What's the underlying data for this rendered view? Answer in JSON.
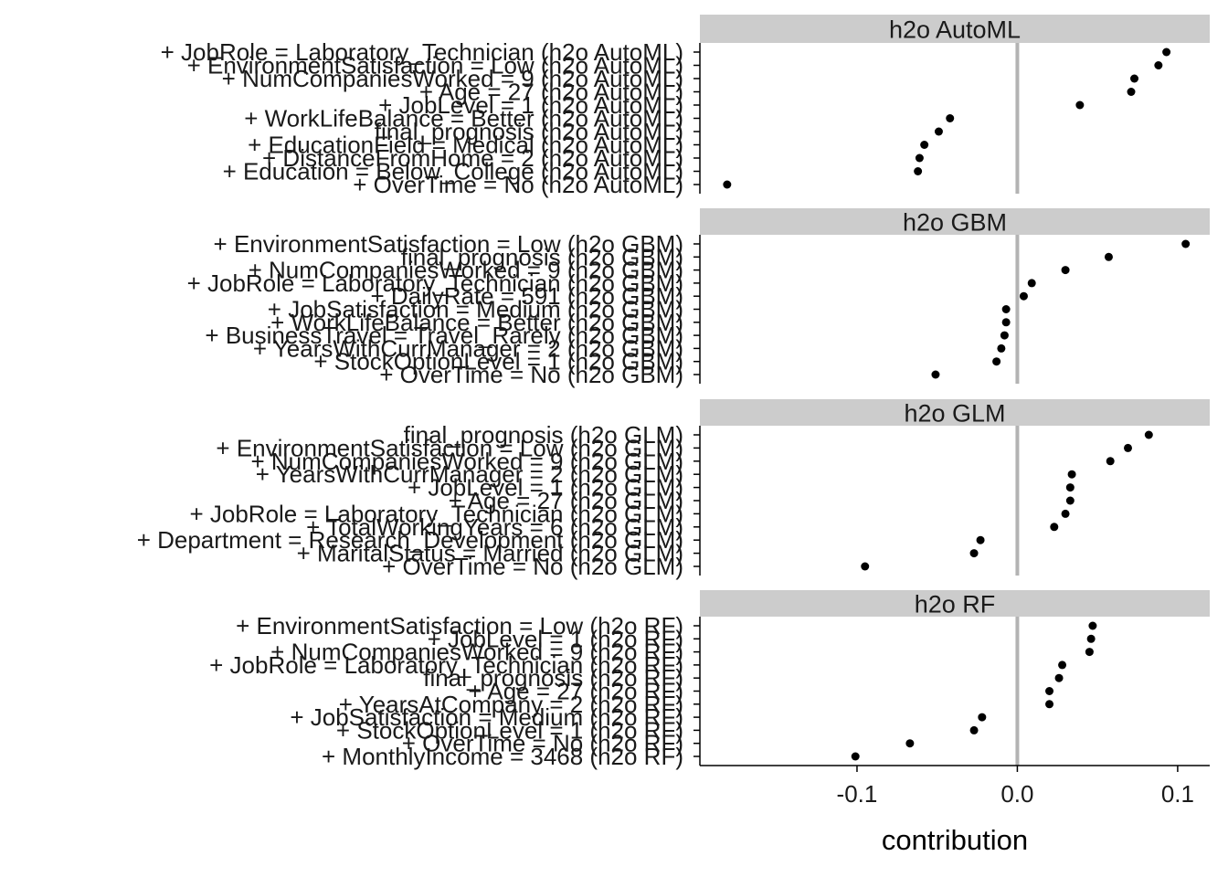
{
  "chart_data": {
    "type": "scatter",
    "xlabel": "contribution",
    "xlim": [
      -0.198,
      0.12
    ],
    "xticks": [
      {
        "value": -0.1,
        "label": "-0.1"
      },
      {
        "value": 0.0,
        "label": "0.0"
      },
      {
        "value": 0.1,
        "label": "0.1"
      }
    ],
    "zero_line": 0,
    "point_color": "#000000",
    "refline_color": "#b3b3b3",
    "strip_color": "#cccccc",
    "panels": [
      {
        "title": "h2o AutoML",
        "points": [
          {
            "label": "+ JobRole = Laboratory_Technician (h2o AutoML)",
            "value": 0.093
          },
          {
            "label": "+ EnvironmentSatisfaction = Low (h2o AutoML)",
            "value": 0.088
          },
          {
            "label": "+ NumCompaniesWorked = 9 (h2o AutoML)",
            "value": 0.073
          },
          {
            "label": "+ Age = 27 (h2o AutoML)",
            "value": 0.071
          },
          {
            "label": "+ JobLevel = 1 (h2o AutoML)",
            "value": 0.039
          },
          {
            "label": "+ WorkLifeBalance = Better (h2o AutoML)",
            "value": -0.042
          },
          {
            "label": "final_prognosis (h2o AutoML)",
            "value": -0.049
          },
          {
            "label": "+ EducationField = Medical (h2o AutoML)",
            "value": -0.058
          },
          {
            "label": "+ DistanceFromHome = 2 (h2o AutoML)",
            "value": -0.061
          },
          {
            "label": "+ Education = Below_College (h2o AutoML)",
            "value": -0.062
          },
          {
            "label": "+ OverTime = No (h2o AutoML)",
            "value": -0.181
          }
        ]
      },
      {
        "title": "h2o GBM",
        "points": [
          {
            "label": "+ EnvironmentSatisfaction = Low (h2o GBM)",
            "value": 0.105
          },
          {
            "label": "final_prognosis (h2o GBM)",
            "value": 0.057
          },
          {
            "label": "+ NumCompaniesWorked = 9 (h2o GBM)",
            "value": 0.03
          },
          {
            "label": "+ JobRole = Laboratory_Technician (h2o GBM)",
            "value": 0.009
          },
          {
            "label": "+ DailyRate = 591 (h2o GBM)",
            "value": 0.004
          },
          {
            "label": "+ JobSatisfaction = Medium (h2o GBM)",
            "value": -0.007
          },
          {
            "label": "+ WorkLifeBalance = Better (h2o GBM)",
            "value": -0.007
          },
          {
            "label": "+ BusinessTravel = Travel_Rarely (h2o GBM)",
            "value": -0.008
          },
          {
            "label": "+ YearsWithCurrManager = 2 (h2o GBM)",
            "value": -0.01
          },
          {
            "label": "+ StockOptionLevel = 1 (h2o GBM)",
            "value": -0.013
          },
          {
            "label": "+ OverTime = No (h2o GBM)",
            "value": -0.051
          }
        ]
      },
      {
        "title": "h2o GLM",
        "points": [
          {
            "label": "final_prognosis (h2o GLM)",
            "value": 0.082
          },
          {
            "label": "+ EnvironmentSatisfaction = Low (h2o GLM)",
            "value": 0.069
          },
          {
            "label": "+ NumCompaniesWorked = 9 (h2o GLM)",
            "value": 0.058
          },
          {
            "label": "+ YearsWithCurrManager = 2 (h2o GLM)",
            "value": 0.034
          },
          {
            "label": "+ JobLevel = 1 (h2o GLM)",
            "value": 0.033
          },
          {
            "label": "+ Age = 27 (h2o GLM)",
            "value": 0.033
          },
          {
            "label": "+ JobRole = Laboratory_Technician (h2o GLM)",
            "value": 0.03
          },
          {
            "label": "+ TotalWorkingYears = 6 (h2o GLM)",
            "value": 0.023
          },
          {
            "label": "+ Department = Research_Development (h2o GLM)",
            "value": -0.023
          },
          {
            "label": "+ MaritalStatus = Married (h2o GLM)",
            "value": -0.027
          },
          {
            "label": "+ OverTime = No (h2o GLM)",
            "value": -0.095
          }
        ]
      },
      {
        "title": "h2o RF",
        "points": [
          {
            "label": "+ EnvironmentSatisfaction = Low (h2o RF)",
            "value": 0.047
          },
          {
            "label": "+ JobLevel = 1 (h2o RF)",
            "value": 0.046
          },
          {
            "label": "+ NumCompaniesWorked = 9 (h2o RF)",
            "value": 0.045
          },
          {
            "label": "+ JobRole = Laboratory_Technician (h2o RF)",
            "value": 0.028
          },
          {
            "label": "final_prognosis (h2o RF)",
            "value": 0.026
          },
          {
            "label": "+ Age = 27 (h2o RF)",
            "value": 0.02
          },
          {
            "label": "+ YearsAtCompany = 2 (h2o RF)",
            "value": 0.02
          },
          {
            "label": "+ JobSatisfaction = Medium (h2o RF)",
            "value": -0.022
          },
          {
            "label": "+ StockOptionLevel = 1 (h2o RF)",
            "value": -0.027
          },
          {
            "label": "+ OverTime = No (h2o RF)",
            "value": -0.067
          },
          {
            "label": "+ MonthlyIncome = 3468 (h2o RF)",
            "value": -0.101
          }
        ]
      }
    ]
  }
}
